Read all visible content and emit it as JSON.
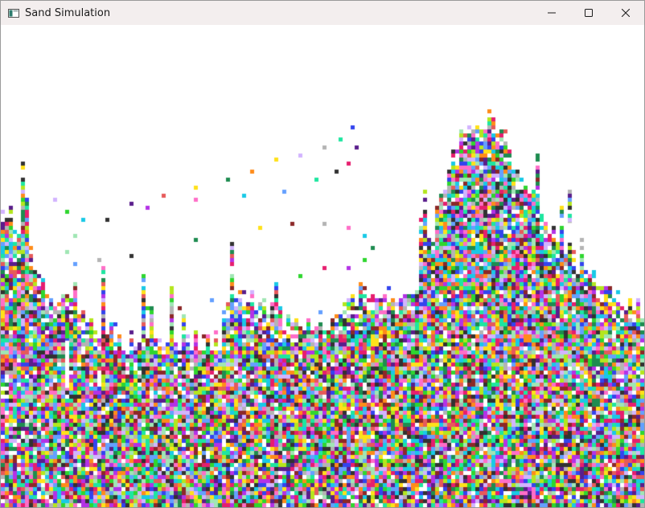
{
  "window": {
    "title": "Sand Simulation",
    "app_icon": "window-app-icon",
    "controls": [
      {
        "name": "minimize-button",
        "icon": "minimize-icon"
      },
      {
        "name": "maximize-button",
        "icon": "maximize-icon"
      },
      {
        "name": "close-button",
        "icon": "close-icon"
      }
    ]
  },
  "simulation": {
    "background": "#ffffff",
    "palette": [
      "#e61e6e",
      "#2fd62f",
      "#3344ee",
      "#ffe11a",
      "#19c9e6",
      "#b432e6",
      "#ff8c1a",
      "#b4e61e",
      "#ff6ec8",
      "#1e8c50",
      "#8c2828",
      "#64a0ff",
      "#b4b4b4",
      "#ffffff",
      "#5a1e8c",
      "#1ee6a0",
      "#e65a5a",
      "#a0e6b4",
      "#323232",
      "#d2b4ff"
    ]
  }
}
